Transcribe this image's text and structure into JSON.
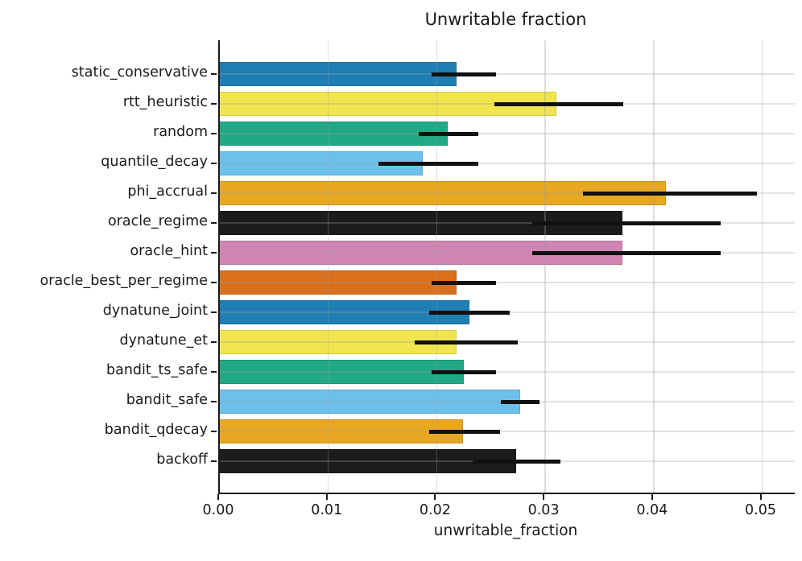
{
  "chart_data": {
    "type": "bar",
    "orientation": "horizontal",
    "title": "Unwritable fraction",
    "xlabel": "unwritable_fraction",
    "ylabel": "",
    "xlim": [
      0,
      0.053
    ],
    "grid": true,
    "legend_position": "none",
    "xticks": [
      {
        "value": 0.0,
        "label": "0.00"
      },
      {
        "value": 0.01,
        "label": "0.01"
      },
      {
        "value": 0.02,
        "label": "0.02"
      },
      {
        "value": 0.03,
        "label": "0.03"
      },
      {
        "value": 0.04,
        "label": "0.04"
      },
      {
        "value": 0.05,
        "label": "0.05"
      }
    ],
    "categories": [
      {
        "label": "static_conservative",
        "value": 0.0218,
        "err_low": 0.0195,
        "err_high": 0.0255,
        "color": "#1f7eb4"
      },
      {
        "label": "rtt_heuristic",
        "value": 0.031,
        "err_low": 0.0253,
        "err_high": 0.0372,
        "color": "#f0e54e"
      },
      {
        "label": "random",
        "value": 0.021,
        "err_low": 0.0183,
        "err_high": 0.0238,
        "color": "#21a884"
      },
      {
        "label": "quantile_decay",
        "value": 0.0187,
        "err_low": 0.0146,
        "err_high": 0.0238,
        "color": "#6cc0ea"
      },
      {
        "label": "phi_accrual",
        "value": 0.0411,
        "err_low": 0.0335,
        "err_high": 0.0495,
        "color": "#e7a722"
      },
      {
        "label": "oracle_regime",
        "value": 0.0371,
        "err_low": 0.0288,
        "err_high": 0.0462,
        "color": "#1c1c1c"
      },
      {
        "label": "oracle_hint",
        "value": 0.0371,
        "err_low": 0.0288,
        "err_high": 0.0462,
        "color": "#d085b2"
      },
      {
        "label": "oracle_best_per_regime",
        "value": 0.0218,
        "err_low": 0.0195,
        "err_high": 0.0255,
        "color": "#d8701d"
      },
      {
        "label": "dynatune_joint",
        "value": 0.023,
        "err_low": 0.0193,
        "err_high": 0.0267,
        "color": "#1f7eb4"
      },
      {
        "label": "dynatune_et",
        "value": 0.0218,
        "err_low": 0.018,
        "err_high": 0.0275,
        "color": "#f0e54e"
      },
      {
        "label": "bandit_ts_safe",
        "value": 0.0225,
        "err_low": 0.0195,
        "err_high": 0.0255,
        "color": "#21a884"
      },
      {
        "label": "bandit_safe",
        "value": 0.0277,
        "err_low": 0.0259,
        "err_high": 0.0295,
        "color": "#6cc0ea"
      },
      {
        "label": "bandit_qdecay",
        "value": 0.0224,
        "err_low": 0.0193,
        "err_high": 0.0258,
        "color": "#e7a722"
      },
      {
        "label": "backoff",
        "value": 0.0273,
        "err_low": 0.0233,
        "err_high": 0.0314,
        "color": "#1c1c1c"
      }
    ],
    "colors": {
      "axis": "#1a1a1a",
      "errorbar": "#111111",
      "gridline": "#d9d9d9",
      "background": "#ffffff"
    }
  }
}
